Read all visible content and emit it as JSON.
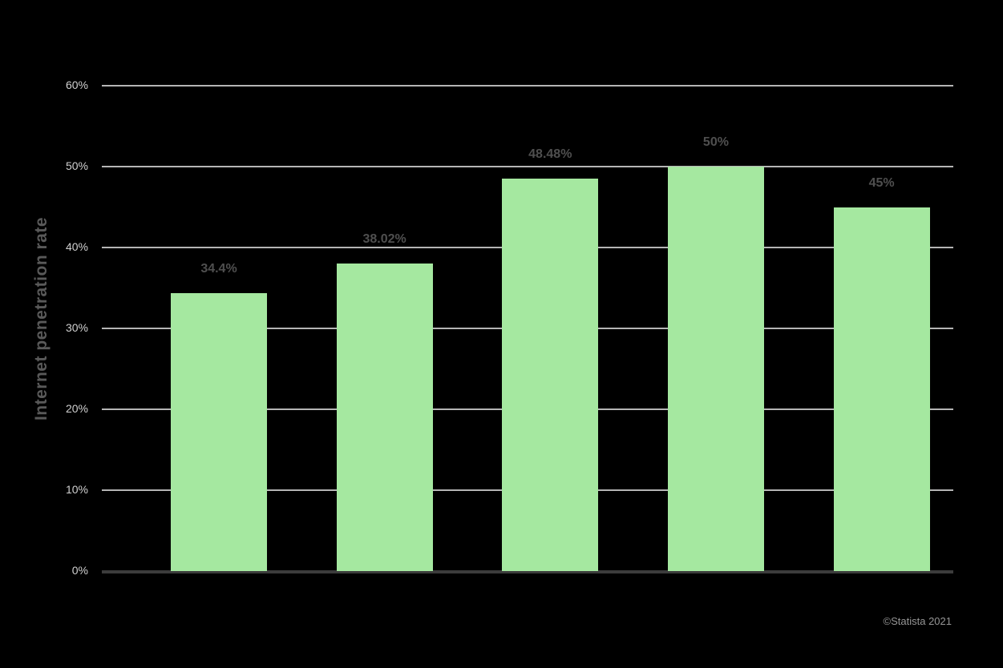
{
  "chart_data": {
    "type": "bar",
    "ylabel": "Internet penetration rate",
    "xlabel": "",
    "values": [
      34.4,
      38.02,
      48.48,
      50,
      45
    ],
    "value_labels": [
      "34.4%",
      "38.02%",
      "48.48%",
      "50%",
      "45%"
    ],
    "y_ticks": [
      0,
      10,
      20,
      30,
      40,
      50,
      60
    ],
    "y_tick_labels": [
      "0%",
      "10%",
      "20%",
      "30%",
      "40%",
      "50%",
      "60%"
    ],
    "ylim": [
      0,
      60
    ],
    "grid": "horizontal",
    "legend": "none",
    "colors": {
      "background": "#000000",
      "bar": "#a5e8a0",
      "gridline": "#b5b5b5",
      "axis_line": "#3c3c3c",
      "tick_label": "#d0d0d0",
      "value_label": "#4f4f4f",
      "axis_title": "#595959",
      "attribution": "#969696"
    }
  },
  "attribution": "©Statista 2021"
}
